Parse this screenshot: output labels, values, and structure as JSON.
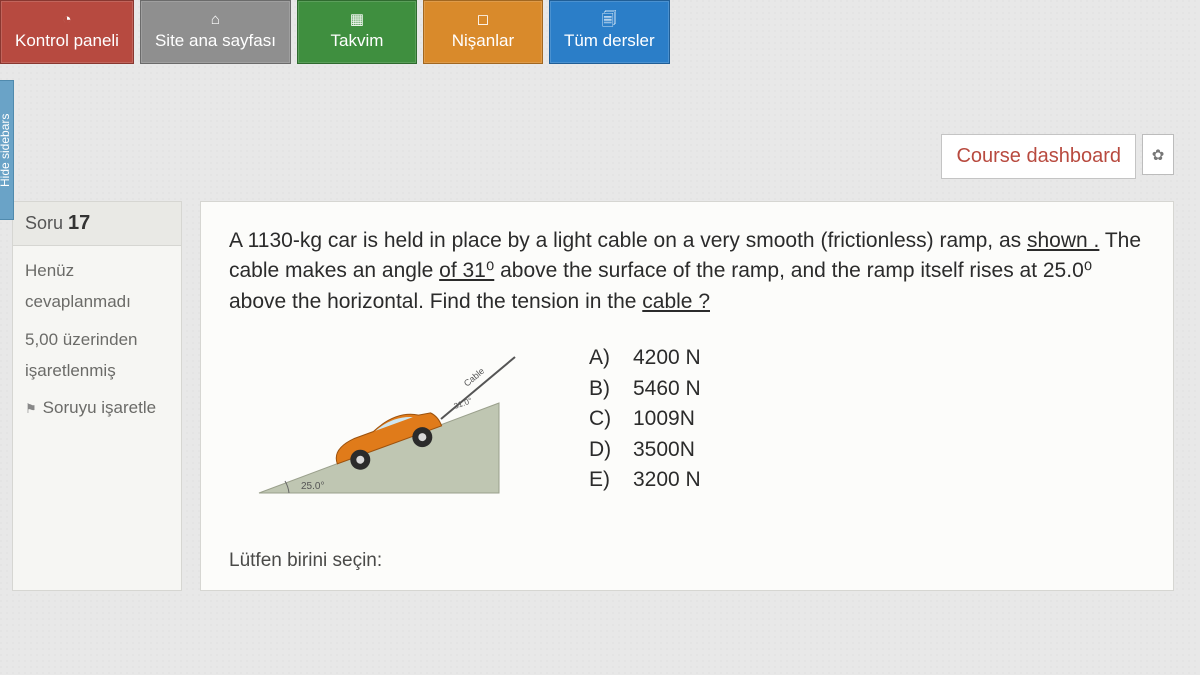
{
  "sideTab": {
    "label": "Hide sidebars"
  },
  "nav": [
    {
      "label": "Kontrol paneli",
      "icon": "◔",
      "bg": "#b74a40"
    },
    {
      "label": "Site ana sayfası",
      "icon": "⌂",
      "bg": "#8f8f8f"
    },
    {
      "label": "Takvim",
      "icon": "▦",
      "bg": "#3f8f3f"
    },
    {
      "label": "Nişanlar",
      "icon": "◻",
      "bg": "#d98a2b"
    },
    {
      "label": "Tüm dersler",
      "icon": "🗐",
      "bg": "#2b7ec8"
    }
  ],
  "dashboard": {
    "label": "Course dashboard"
  },
  "question": {
    "label": "Soru",
    "number": "17",
    "status_line1": "Henüz",
    "status_line2": "cevaplanmadı",
    "marks_line1": "5,00 üzerinden",
    "marks_line2": "işaretlenmiş",
    "flag": "Soruyu işaretle",
    "text_part1": "A 1130-kg car is held in place by a light cable on a very smooth (frictionless) ramp, as ",
    "text_shown": "shown .",
    "text_part2": " The cable makes an angle ",
    "text_of31": "of  31⁰",
    "text_part3": " above the surface of the ramp, and the ramp itself rises at 25.0⁰ above the horizontal. Find the tension in the ",
    "text_cable": "cable ?",
    "diagram": {
      "ramp_angle_label": "25.0°",
      "cable_angle_label": "31.0°",
      "cable_word": "Cable",
      "ramp_fill": "#bfc6b2",
      "car_fill": "#e07b1a",
      "car_dark": "#3a3a3a",
      "tire_fill": "#2b2b2b"
    },
    "options": [
      {
        "key": "A)",
        "val": "4200 N"
      },
      {
        "key": "B)",
        "val": "5460 N"
      },
      {
        "key": "C)",
        "val": "1009N"
      },
      {
        "key": "D)",
        "val": "3500N"
      },
      {
        "key": "E)",
        "val": "3200 N"
      }
    ],
    "select_prompt": "Lütfen birini seçin:"
  }
}
